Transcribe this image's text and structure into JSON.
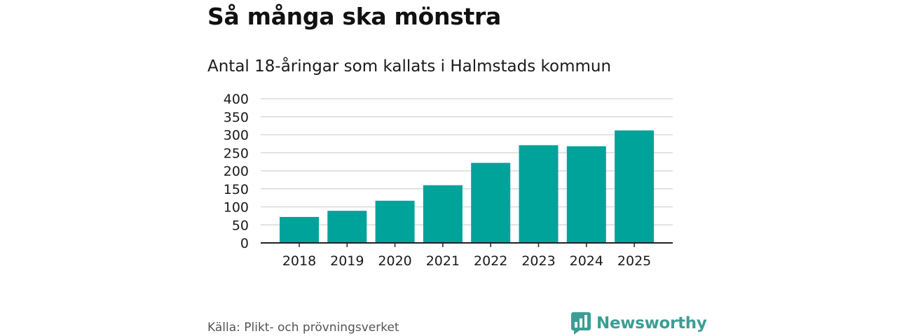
{
  "header": {
    "title": "Så många ska mönstra",
    "subtitle": "Antal 18-åringar som kallats i Halmstads kommun"
  },
  "footer": {
    "source": "Källa: Plikt- och prövningsverket",
    "brand": "Newsworthy"
  },
  "colors": {
    "bar": "#00a39a",
    "grid": "#d9d9d9",
    "axis": "#222222",
    "brand": "#3b9e95"
  },
  "chart_data": {
    "type": "bar",
    "title": "Så många ska mönstra",
    "subtitle": "Antal 18-åringar som kallats i Halmstads kommun",
    "categories": [
      "2018",
      "2019",
      "2020",
      "2021",
      "2022",
      "2023",
      "2024",
      "2025"
    ],
    "values": [
      72,
      89,
      117,
      160,
      222,
      271,
      268,
      312
    ],
    "ylim": [
      0,
      400
    ],
    "yticks": [
      0,
      50,
      100,
      150,
      200,
      250,
      300,
      350,
      400
    ],
    "grid": true,
    "xlabel": "",
    "ylabel": ""
  }
}
